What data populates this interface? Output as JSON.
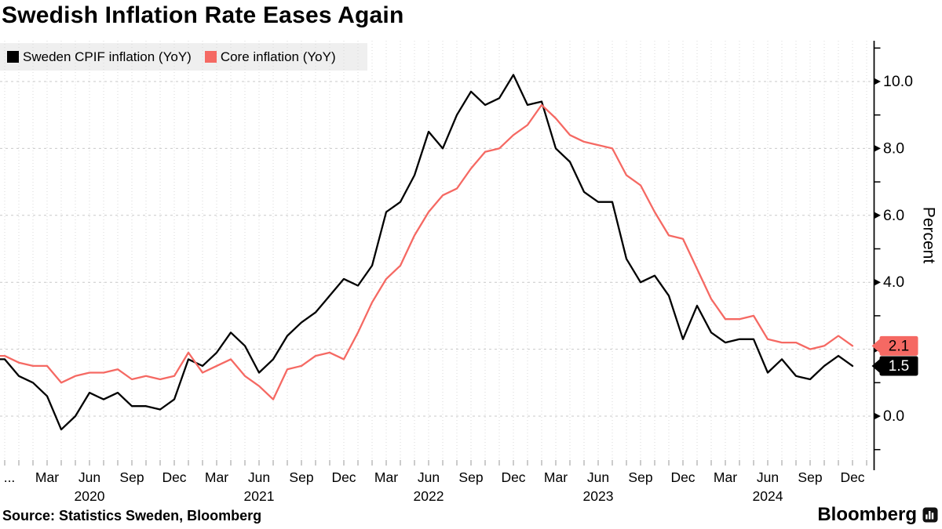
{
  "title": "Swedish Inflation Rate Eases Again",
  "source": "Source: Statistics Sweden, Bloomberg",
  "brand": {
    "name": "Bloomberg",
    "icon": "bloomberg-terminal-icon"
  },
  "colors": {
    "cpif_line": "#000000",
    "core_line": "#F56963",
    "grid_major": "#C9C9C9",
    "grid_minor_vertical": "#D8D8D8",
    "month_tick": "#999999",
    "legend_bg": "#EFEFEF",
    "axis": "#000000"
  },
  "legend": [
    {
      "label": "Sweden CPIF inflation (YoY)",
      "color": "#000000"
    },
    {
      "label": "Core inflation (YoY)",
      "color": "#F56963"
    }
  ],
  "y_axis": {
    "label": "Percent",
    "ticks": [
      {
        "value": 0,
        "label": "0.0"
      },
      {
        "value": 4,
        "label": "4.0"
      },
      {
        "value": 6,
        "label": "6.0"
      },
      {
        "value": 8,
        "label": "8.0"
      },
      {
        "value": 10,
        "label": "10.0"
      }
    ],
    "major_tick_values": [
      0,
      2,
      4,
      6,
      8,
      10
    ],
    "minor_tick_values": [
      -1,
      1,
      3,
      5,
      7,
      9,
      11
    ]
  },
  "x_axis": {
    "lead_label": "...",
    "month_label_cycle": [
      "Mar",
      "Jun",
      "Sep",
      "Dec"
    ],
    "year_labels": [
      "2020",
      "2021",
      "2022",
      "2023",
      "2024"
    ]
  },
  "badges": [
    {
      "value": "2.1",
      "y_value": 2.1,
      "bg": "#F56963",
      "text_color": "#000000",
      "series": "Core inflation (YoY)"
    },
    {
      "value": "1.5",
      "y_value": 1.5,
      "bg": "#000000",
      "text_color": "#FFFFFF",
      "series": "Sweden CPIF inflation (YoY)"
    }
  ],
  "chart_data": {
    "type": "line",
    "frequency": "monthly",
    "x_start": "2019-11",
    "x_end": "2024-12",
    "note": "First point (Nov 2019) is clipped at the left edge; x tick labels every 3 months Mar/Jun/Sep/Dec with year labels beneath June",
    "ylim": [
      -1.5,
      11.3
    ],
    "ylabel": "Percent",
    "grid": "horizontal dashed at 0,2,4,6,8,10; vertical dotted monthly",
    "legend_position": "top-left",
    "series": [
      {
        "name": "Sweden CPIF inflation (YoY)",
        "color": "#000000",
        "end_badge": "1.5",
        "values": [
          1.7,
          1.7,
          1.2,
          1.0,
          0.6,
          -0.4,
          0.0,
          0.7,
          0.5,
          0.7,
          0.3,
          0.3,
          0.2,
          0.5,
          1.7,
          1.5,
          1.9,
          2.5,
          2.1,
          1.3,
          1.7,
          2.4,
          2.8,
          3.1,
          3.6,
          4.1,
          3.9,
          4.5,
          6.1,
          6.4,
          7.2,
          8.5,
          8.0,
          9.0,
          9.7,
          9.3,
          9.5,
          10.2,
          9.3,
          9.4,
          8.0,
          7.6,
          6.7,
          6.4,
          6.4,
          4.7,
          4.0,
          4.2,
          3.6,
          2.3,
          3.3,
          2.5,
          2.2,
          2.3,
          2.3,
          1.3,
          1.7,
          1.2,
          1.1,
          1.5,
          1.8,
          1.5
        ]
      },
      {
        "name": "Core inflation (YoY)",
        "color": "#F56963",
        "end_badge": "2.1",
        "values": [
          1.8,
          1.8,
          1.6,
          1.5,
          1.5,
          1.0,
          1.2,
          1.3,
          1.3,
          1.4,
          1.1,
          1.2,
          1.1,
          1.2,
          1.9,
          1.3,
          1.5,
          1.7,
          1.2,
          0.9,
          0.5,
          1.4,
          1.5,
          1.8,
          1.9,
          1.7,
          2.5,
          3.4,
          4.1,
          4.5,
          5.4,
          6.1,
          6.6,
          6.8,
          7.4,
          7.9,
          8.0,
          8.4,
          8.7,
          9.3,
          8.9,
          8.4,
          8.2,
          8.1,
          8.0,
          7.2,
          6.9,
          6.1,
          5.4,
          5.3,
          4.4,
          3.5,
          2.9,
          2.9,
          3.0,
          2.3,
          2.2,
          2.2,
          2.0,
          2.1,
          2.4,
          2.1
        ]
      }
    ]
  }
}
